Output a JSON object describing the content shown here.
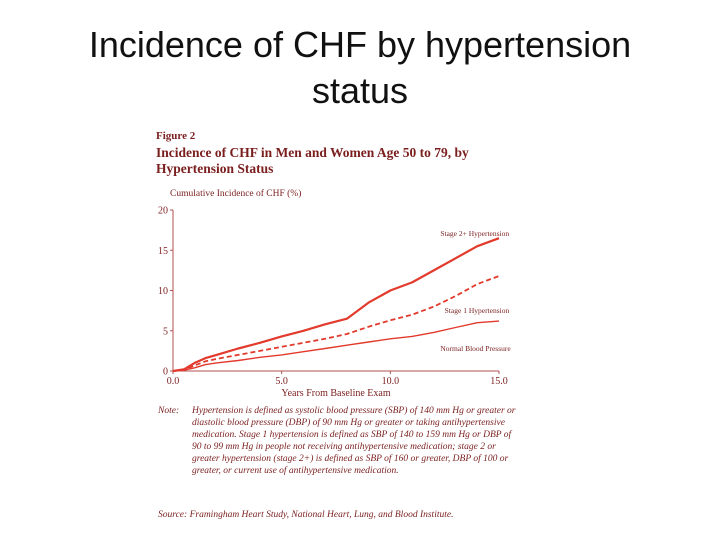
{
  "slide": {
    "title": "Incidence of CHF by hypertension status"
  },
  "figure": {
    "label": "Figure 2",
    "title": "Incidence of CHF in Men and Women Age 50 to 79, by Hypertension Status",
    "note_label": "Note:",
    "note": "Hypertension is defined as systolic blood pressure (SBP) of 140 mm Hg or greater or diastolic blood pressure (DBP) of 90 mm Hg or greater or taking antihypertensive medication. Stage 1 hypertension is defined as SBP of 140 to 159 mm Hg or DBP of 90 to 99 mm Hg in people not receiving antihypertensive medication; stage 2 or greater hypertension (stage 2+) is defined as SBP of 160 or greater, DBP of 100 or greater, or current use of antihypertensive medication.",
    "source": "Source: Framingham Heart Study, National Heart, Lung, and Blood Institute."
  },
  "colors": {
    "series": "#e23a2c",
    "text": "#7a1e1e",
    "axis": "#b05050"
  },
  "chart_data": {
    "type": "line",
    "ylabel": "Cumulative Incidence of CHF (%)",
    "xlabel": "Years From Baseline Exam",
    "xlim": [
      0,
      15
    ],
    "ylim": [
      0,
      20
    ],
    "xticks": [
      "0.0",
      "5.0",
      "10.0",
      "15.0"
    ],
    "xtick_values": [
      0,
      5,
      10,
      15
    ],
    "yticks": [
      "0",
      "5",
      "10",
      "15",
      "20"
    ],
    "ytick_values": [
      0,
      5,
      10,
      15,
      20
    ],
    "grid": false,
    "series": [
      {
        "name": "Stage 2+ Hypertension",
        "style": "solid-thick",
        "x": [
          0,
          0.5,
          1,
          1.5,
          2,
          3,
          4,
          5,
          6,
          7,
          8,
          9,
          10,
          11,
          12,
          13,
          14,
          15
        ],
        "y": [
          0,
          0.2,
          1.0,
          1.6,
          2.0,
          2.8,
          3.5,
          4.3,
          5.0,
          5.8,
          6.5,
          8.5,
          10.0,
          11.0,
          12.5,
          14.0,
          15.5,
          16.5
        ]
      },
      {
        "name": "Stage 1 Hypertension",
        "style": "dashed",
        "x": [
          0,
          0.5,
          1,
          1.5,
          2,
          3,
          4,
          5,
          6,
          7,
          8,
          9,
          10,
          11,
          12,
          13,
          14,
          15
        ],
        "y": [
          0,
          0.1,
          0.7,
          1.2,
          1.5,
          2.0,
          2.5,
          3.0,
          3.5,
          4.0,
          4.6,
          5.5,
          6.3,
          7.0,
          8.0,
          9.3,
          10.8,
          11.8
        ]
      },
      {
        "name": "Normal Blood Pressure",
        "style": "solid-thin",
        "x": [
          0,
          0.5,
          1,
          1.5,
          2,
          3,
          4,
          5,
          6,
          7,
          8,
          9,
          10,
          11,
          12,
          13,
          14,
          15
        ],
        "y": [
          0,
          0.1,
          0.4,
          0.8,
          1.0,
          1.3,
          1.7,
          2.0,
          2.4,
          2.8,
          3.2,
          3.6,
          4.0,
          4.3,
          4.8,
          5.4,
          6.0,
          6.2
        ]
      }
    ],
    "annotations": [
      "Stage 2+ Hypertension",
      "Stage 1 Hypertension",
      "Normal Blood Pressure"
    ]
  }
}
